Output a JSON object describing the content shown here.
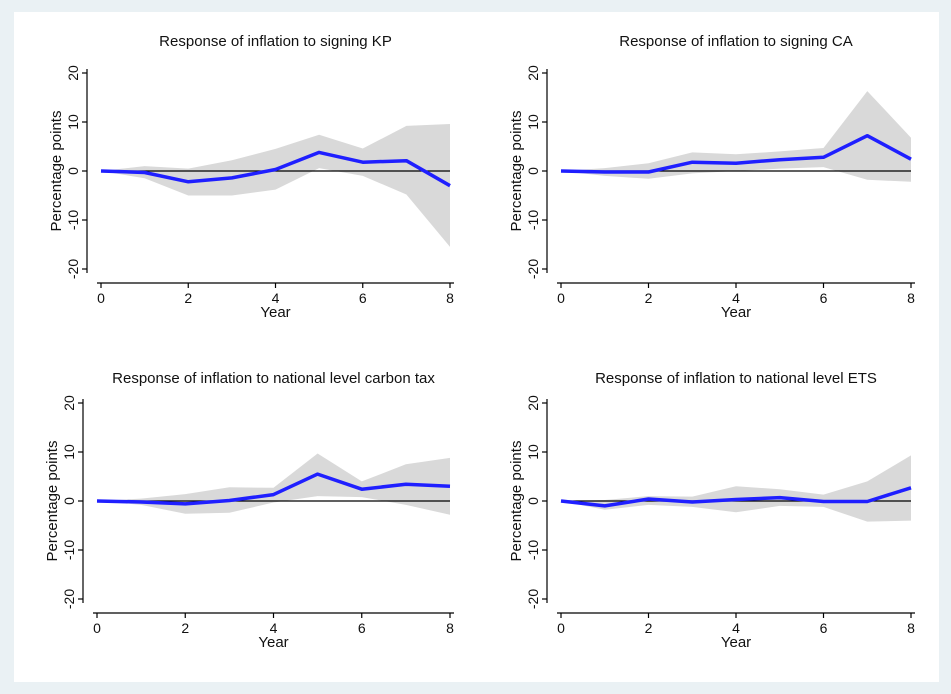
{
  "chart_data": [
    {
      "type": "line",
      "title": "Response of inflation to signing KP",
      "xlabel": "Year",
      "ylabel": "Percentage points",
      "xticks": [
        0,
        2,
        4,
        6,
        8
      ],
      "yticks": [
        -20,
        -10,
        0,
        10,
        20
      ],
      "xlim": [
        0,
        8
      ],
      "ylim": [
        -20,
        20
      ],
      "grid": false,
      "colors": {
        "line": "#1f1fff",
        "band": "#d9d9d9",
        "zero": "#000000"
      },
      "x": [
        0,
        1,
        2,
        3,
        4,
        5,
        6,
        7,
        8
      ],
      "series": [
        {
          "values": [
            0,
            -0.3,
            -2.2,
            -1.4,
            0.3,
            3.8,
            1.8,
            2.1,
            -3.0
          ]
        }
      ],
      "band": {
        "lower": [
          0,
          -1.5,
          -5.0,
          -5.0,
          -3.8,
          0.6,
          -1.0,
          -4.8,
          -15.5
        ],
        "upper": [
          0,
          1.0,
          0.5,
          2.2,
          4.5,
          7.4,
          4.6,
          9.2,
          9.6
        ]
      }
    },
    {
      "type": "line",
      "title": "Response of inflation to signing CA",
      "xlabel": "Year",
      "ylabel": "Percentage points",
      "xticks": [
        0,
        2,
        4,
        6,
        8
      ],
      "yticks": [
        -20,
        -10,
        0,
        10,
        20
      ],
      "xlim": [
        0,
        8
      ],
      "ylim": [
        -20,
        20
      ],
      "grid": false,
      "colors": {
        "line": "#1f1fff",
        "band": "#d9d9d9",
        "zero": "#000000"
      },
      "x": [
        0,
        1,
        2,
        3,
        4,
        5,
        6,
        7,
        8
      ],
      "series": [
        {
          "values": [
            0,
            -0.2,
            -0.2,
            1.8,
            1.6,
            2.3,
            2.8,
            7.2,
            2.4
          ]
        }
      ],
      "band": {
        "lower": [
          0,
          -1.0,
          -1.6,
          -0.5,
          0.0,
          0.5,
          0.8,
          -1.8,
          -2.2
        ],
        "upper": [
          0,
          0.6,
          1.6,
          3.8,
          3.4,
          4.0,
          4.7,
          16.3,
          6.8
        ]
      }
    },
    {
      "type": "line",
      "title": "Response of inflation to national level carbon tax",
      "xlabel": "Year",
      "ylabel": "Percentage points",
      "xticks": [
        0,
        2,
        4,
        6,
        8
      ],
      "yticks": [
        -20,
        -10,
        0,
        10,
        20
      ],
      "xlim": [
        0,
        8
      ],
      "ylim": [
        -20,
        20
      ],
      "grid": false,
      "colors": {
        "line": "#1f1fff",
        "band": "#d9d9d9",
        "zero": "#000000"
      },
      "x": [
        0,
        1,
        2,
        3,
        4,
        5,
        6,
        7,
        8
      ],
      "series": [
        {
          "values": [
            0,
            -0.2,
            -0.6,
            0.1,
            1.3,
            5.5,
            2.4,
            3.4,
            3.0
          ]
        }
      ],
      "band": {
        "lower": [
          0,
          -0.8,
          -2.6,
          -2.4,
          -0.3,
          1.0,
          0.8,
          -0.8,
          -2.8
        ],
        "upper": [
          0,
          0.5,
          1.4,
          2.8,
          2.7,
          9.7,
          4.0,
          7.5,
          8.8
        ]
      }
    },
    {
      "type": "line",
      "title": "Response of inflation to national level ETS",
      "xlabel": "Year",
      "ylabel": "Percentage points",
      "xticks": [
        0,
        2,
        4,
        6,
        8
      ],
      "yticks": [
        -20,
        -10,
        0,
        10,
        20
      ],
      "xlim": [
        0,
        8
      ],
      "ylim": [
        -20,
        20
      ],
      "grid": false,
      "colors": {
        "line": "#1f1fff",
        "band": "#d9d9d9",
        "zero": "#000000"
      },
      "x": [
        0,
        1,
        2,
        3,
        4,
        5,
        6,
        7,
        8
      ],
      "series": [
        {
          "values": [
            0,
            -1.0,
            0.4,
            -0.2,
            0.3,
            0.7,
            -0.1,
            -0.1,
            2.7
          ]
        }
      ],
      "band": {
        "lower": [
          0,
          -1.8,
          -0.8,
          -1.2,
          -2.3,
          -1.0,
          -1.2,
          -4.2,
          -4.0
        ],
        "upper": [
          0,
          0.2,
          1.0,
          0.9,
          3.0,
          2.4,
          1.3,
          4.0,
          9.3
        ]
      }
    }
  ]
}
